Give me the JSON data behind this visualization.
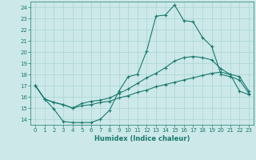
{
  "xlabel": "Humidex (Indice chaleur)",
  "ylabel": "",
  "background_color": "#cce8e8",
  "grid_color": "#aad4d4",
  "line_color": "#1a7a6e",
  "xlim": [
    -0.5,
    23.5
  ],
  "ylim": [
    13.5,
    24.5
  ],
  "xticks": [
    0,
    1,
    2,
    3,
    4,
    5,
    6,
    7,
    8,
    9,
    10,
    11,
    12,
    13,
    14,
    15,
    16,
    17,
    18,
    19,
    20,
    21,
    22,
    23
  ],
  "yticks": [
    14,
    15,
    16,
    17,
    18,
    19,
    20,
    21,
    22,
    23,
    24
  ],
  "line1_x": [
    0,
    1,
    2,
    3,
    4,
    5,
    6,
    7,
    8,
    9,
    10,
    11,
    12,
    13,
    14,
    15,
    16,
    17,
    18,
    19,
    20,
    21,
    22,
    23
  ],
  "line1_y": [
    17.0,
    15.8,
    14.9,
    13.8,
    13.7,
    13.7,
    13.7,
    14.0,
    14.8,
    16.5,
    17.8,
    18.0,
    20.1,
    23.2,
    23.3,
    24.2,
    22.8,
    22.7,
    21.3,
    20.5,
    18.0,
    17.8,
    17.5,
    16.3
  ],
  "line2_x": [
    0,
    1,
    2,
    3,
    4,
    5,
    6,
    7,
    8,
    9,
    10,
    11,
    12,
    13,
    14,
    15,
    16,
    17,
    18,
    19,
    20,
    21,
    22,
    23
  ],
  "line2_y": [
    17.0,
    15.8,
    15.5,
    15.3,
    15.0,
    15.4,
    15.6,
    15.7,
    15.9,
    16.3,
    16.7,
    17.2,
    17.7,
    18.1,
    18.6,
    19.2,
    19.5,
    19.6,
    19.5,
    19.3,
    18.5,
    18.0,
    17.8,
    16.5
  ],
  "line3_x": [
    0,
    1,
    2,
    3,
    4,
    5,
    6,
    7,
    8,
    9,
    10,
    11,
    12,
    13,
    14,
    15,
    16,
    17,
    18,
    19,
    20,
    21,
    22,
    23
  ],
  "line3_y": [
    17.0,
    15.8,
    15.5,
    15.3,
    15.0,
    15.2,
    15.3,
    15.5,
    15.6,
    15.9,
    16.1,
    16.4,
    16.6,
    16.9,
    17.1,
    17.3,
    17.5,
    17.7,
    17.9,
    18.1,
    18.2,
    18.0,
    16.5,
    16.2
  ]
}
